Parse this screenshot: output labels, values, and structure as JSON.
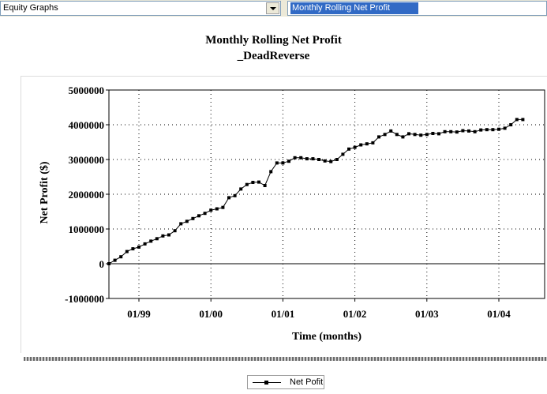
{
  "toolbar": {
    "left_select_value": "Equity Graphs",
    "right_select_value": "Monthly Rolling Net Profit"
  },
  "chart_data": {
    "type": "line",
    "title": "Monthly Rolling Net Profit",
    "subtitle": "_DeadReverse",
    "xlabel": "Time (months)",
    "ylabel": "Net Profit ($)",
    "ylim": [
      -1000000,
      5000000
    ],
    "yticks": [
      "5000000",
      "4000000",
      "3000000",
      "2000000",
      "1000000",
      "0",
      "-1000000"
    ],
    "xticks": [
      "01/99",
      "01/00",
      "01/01",
      "01/02",
      "01/03",
      "01/04"
    ],
    "grid": true,
    "legend_position": "bottom-center",
    "series": [
      {
        "name": "Net Pofit",
        "x": [
          "1998-08",
          "1998-09",
          "1998-10",
          "1998-11",
          "1998-12",
          "1999-01",
          "1999-02",
          "1999-03",
          "1999-04",
          "1999-05",
          "1999-06",
          "1999-07",
          "1999-08",
          "1999-09",
          "1999-10",
          "1999-11",
          "1999-12",
          "2000-01",
          "2000-02",
          "2000-03",
          "2000-04",
          "2000-05",
          "2000-06",
          "2000-07",
          "2000-08",
          "2000-09",
          "2000-10",
          "2000-11",
          "2000-12",
          "2001-01",
          "2001-02",
          "2001-03",
          "2001-04",
          "2001-05",
          "2001-06",
          "2001-07",
          "2001-08",
          "2001-09",
          "2001-10",
          "2001-11",
          "2001-12",
          "2002-01",
          "2002-02",
          "2002-03",
          "2002-04",
          "2002-05",
          "2002-06",
          "2002-07",
          "2002-08",
          "2002-09",
          "2002-10",
          "2002-11",
          "2002-12",
          "2003-01",
          "2003-02",
          "2003-03",
          "2003-04",
          "2003-05",
          "2003-06",
          "2003-07",
          "2003-08",
          "2003-09",
          "2003-10",
          "2003-11",
          "2003-12",
          "2004-01",
          "2004-02",
          "2004-03",
          "2004-04",
          "2004-05"
        ],
        "values": [
          0,
          100000,
          200000,
          350000,
          430000,
          480000,
          570000,
          650000,
          720000,
          800000,
          830000,
          950000,
          1150000,
          1220000,
          1300000,
          1380000,
          1450000,
          1540000,
          1580000,
          1620000,
          1900000,
          1960000,
          2150000,
          2280000,
          2340000,
          2350000,
          2250000,
          2650000,
          2900000,
          2900000,
          2950000,
          3050000,
          3050000,
          3020000,
          3020000,
          3000000,
          2960000,
          2940000,
          3000000,
          3150000,
          3300000,
          3350000,
          3420000,
          3450000,
          3480000,
          3650000,
          3720000,
          3820000,
          3720000,
          3650000,
          3740000,
          3720000,
          3700000,
          3720000,
          3750000,
          3740000,
          3800000,
          3800000,
          3790000,
          3830000,
          3820000,
          3800000,
          3850000,
          3860000,
          3860000,
          3870000,
          3900000,
          4000000,
          4150000,
          4150000
        ]
      }
    ]
  }
}
